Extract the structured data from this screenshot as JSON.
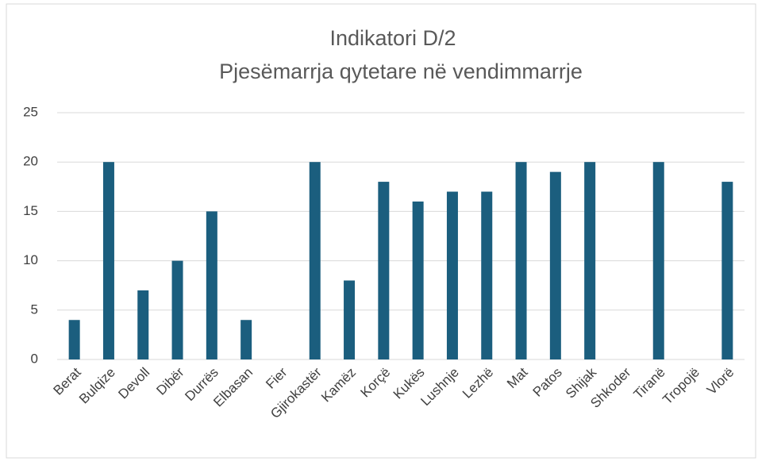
{
  "chart_data": {
    "type": "bar",
    "title": "Indikatori D/2",
    "subtitle": "Pjesëmarrja qytetare në vendimmarrje",
    "categories": [
      "Berat",
      "Bulqize",
      "Devoll",
      "Dibër",
      "Durrës",
      "Elbasan",
      "Fier",
      "Gjirokastër",
      "Kamëz",
      "Korçë",
      "Kukës",
      "Lushnje",
      "Lezhë",
      "Mat",
      "Patos",
      "Shijak",
      "Shkoder",
      "Tiranë",
      "Tropojë",
      "Vlorë"
    ],
    "values": [
      4,
      20,
      7,
      10,
      15,
      4,
      0,
      20,
      8,
      18,
      16,
      17,
      17,
      20,
      19,
      20,
      0,
      20,
      0,
      18
    ],
    "color": "#1b5e7e",
    "ylim": [
      0,
      25
    ],
    "yticks": [
      0,
      5,
      10,
      15,
      20,
      25
    ],
    "grid": true
  }
}
